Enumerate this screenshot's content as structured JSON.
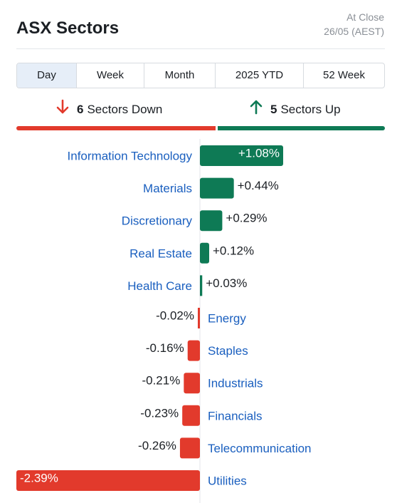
{
  "header": {
    "title": "ASX Sectors",
    "as_of_line1": "At Close",
    "as_of_line2": "26/05 (AEST)"
  },
  "tabs": [
    {
      "label": "Day",
      "active": true
    },
    {
      "label": "Week",
      "active": false
    },
    {
      "label": "Month",
      "active": false
    },
    {
      "label": "2025 YTD",
      "active": false
    },
    {
      "label": "52 Week",
      "active": false
    }
  ],
  "summary": {
    "down_count": "6",
    "down_label": "Sectors Down",
    "up_count": "5",
    "up_label": "Sectors Up"
  },
  "colors": {
    "up": "#0e7a55",
    "down": "#e23a2c",
    "link": "#1a5fbf",
    "text": "#1b1f24"
  },
  "chart_data": {
    "type": "bar",
    "orientation": "horizontal",
    "categories": [
      "Information Technology",
      "Materials",
      "Discretionary",
      "Real Estate",
      "Health Care",
      "Energy",
      "Staples",
      "Industrials",
      "Financials",
      "Telecommunication",
      "Utilities"
    ],
    "values": [
      1.08,
      0.44,
      0.29,
      0.12,
      0.03,
      -0.02,
      -0.16,
      -0.21,
      -0.23,
      -0.26,
      -2.39
    ],
    "value_labels": [
      "+1.08%",
      "+0.44%",
      "+0.29%",
      "+0.12%",
      "+0.03%",
      "-0.02%",
      "-0.16%",
      "-0.21%",
      "-0.23%",
      "-0.26%",
      "-2.39%"
    ]
  }
}
